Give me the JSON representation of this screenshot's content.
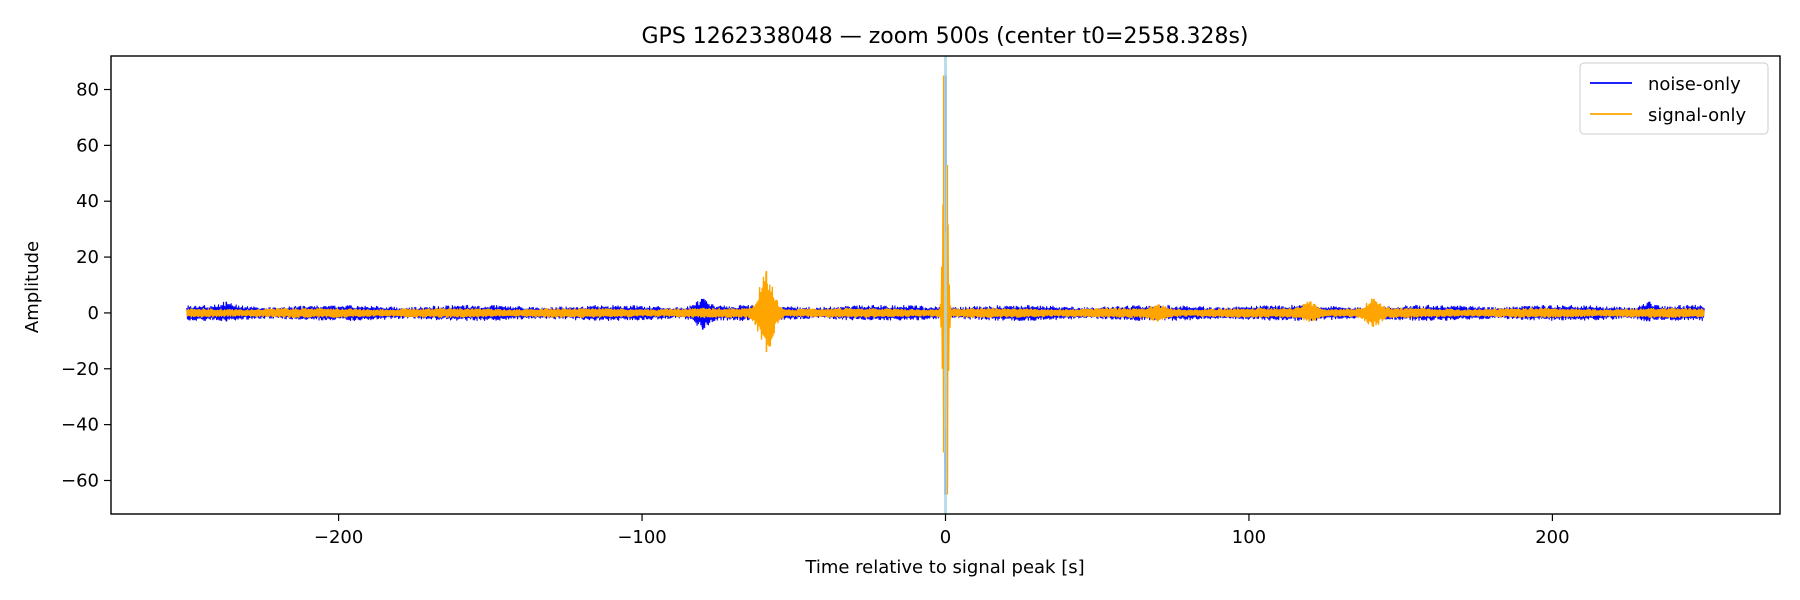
{
  "chart_data": {
    "type": "line",
    "title": "GPS 1262338048 — zoom 500s (center t0=2558.328s)",
    "xlabel": "Time relative to signal peak [s]",
    "ylabel": "Amplitude",
    "xlim": [
      -275,
      275
    ],
    "ylim": [
      -72,
      92
    ],
    "xticks": [
      -200,
      -100,
      0,
      100,
      200
    ],
    "xtick_labels": [
      "−200",
      "−100",
      "0",
      "100",
      "200"
    ],
    "yticks": [
      -60,
      -40,
      -20,
      0,
      20,
      40,
      60,
      80
    ],
    "ytick_labels": [
      "−60",
      "−40",
      "−20",
      "0",
      "20",
      "40",
      "60",
      "80"
    ],
    "grid": false,
    "legend": "top-right",
    "peak_marker": {
      "x": 0,
      "color": "#add8e6"
    },
    "series": [
      {
        "name": "noise-only",
        "color": "#0000ff",
        "x_range": [
          -250,
          250
        ],
        "baseline_amplitude": 2.5,
        "features": [
          {
            "x": -237,
            "y": [
              -3,
              4
            ]
          },
          {
            "x": -80,
            "y": [
              -6,
              5
            ]
          },
          {
            "x": 0,
            "y": [
              -65,
              85
            ]
          },
          {
            "x": 232,
            "y": [
              -3,
              4
            ]
          }
        ]
      },
      {
        "name": "signal-only",
        "color": "#ffa500",
        "x_range": [
          -250,
          250
        ],
        "baseline_amplitude": 1.5,
        "features": [
          {
            "x": -59,
            "y": [
              -14,
              15
            ]
          },
          {
            "x": -0.5,
            "y": [
              -50,
              85
            ]
          },
          {
            "x": 0.5,
            "y": [
              -65,
              53
            ]
          },
          {
            "x": 70,
            "y": [
              -3,
              3
            ]
          },
          {
            "x": 120,
            "y": [
              -3,
              4
            ]
          },
          {
            "x": 141,
            "y": [
              -5,
              5
            ]
          }
        ]
      }
    ]
  }
}
